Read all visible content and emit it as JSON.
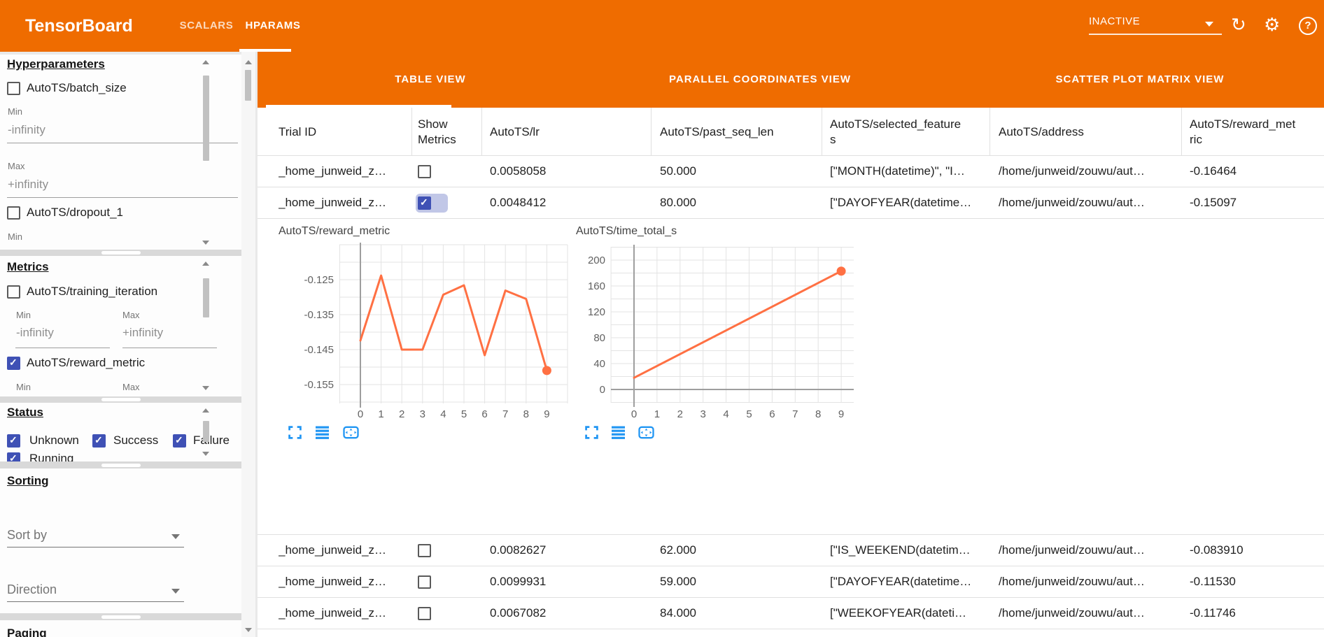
{
  "colors": {
    "accent_orange": "#ef6c00",
    "chart_line": "#ff7043",
    "checkbox_blue": "#3f51b5",
    "icon_blue": "#2196f3"
  },
  "header": {
    "title": "TensorBoard",
    "dashboard_tabs": [
      "SCALARS",
      "HPARAMS"
    ],
    "active_dashboard_tab": "HPARAMS",
    "runs_selector_value": "INACTIVE",
    "icons": {
      "refresh_glyph": "↻",
      "settings_glyph": "⚙",
      "help_glyph": "?"
    }
  },
  "sidebar": {
    "hyperparameters": {
      "heading": "Hyperparameters",
      "param1": "AutoTS/batch_size",
      "param1_checked": false,
      "min_label": "Min",
      "min_value": "-infinity",
      "max_label": "Max",
      "max_value": "+infinity",
      "param2": "AutoTS/dropout_1",
      "param2_checked": false,
      "min_label2": "Min"
    },
    "metrics": {
      "heading": "Metrics",
      "metric1": "AutoTS/training_iteration",
      "metric1_checked": false,
      "min_label": "Min",
      "min_value": "-infinity",
      "max_label": "Max",
      "max_value": "+infinity",
      "metric2": "AutoTS/reward_metric",
      "metric2_checked": true,
      "min_label2": "Min",
      "max_label2": "Max"
    },
    "status": {
      "heading": "Status",
      "options": [
        "Unknown",
        "Success",
        "Failure",
        "Running"
      ],
      "checked": [
        true,
        true,
        true,
        true
      ]
    },
    "sorting": {
      "heading": "Sorting",
      "sort_by": "Sort by",
      "direction": "Direction"
    },
    "paging": {
      "heading": "Paging"
    }
  },
  "main": {
    "view_tabs": [
      "TABLE VIEW",
      "PARALLEL COORDINATES VIEW",
      "SCATTER PLOT MATRIX VIEW"
    ],
    "active_view_tab": "TABLE VIEW"
  },
  "table": {
    "columns": [
      "Trial ID",
      "Show Metrics",
      "AutoTS/lr",
      "AutoTS/past_seq_len",
      "AutoTS/selected_features",
      "AutoTS/address",
      "AutoTS/reward_metric"
    ],
    "rows": [
      {
        "trial_id": "_home_junweid_z…",
        "show_metrics": false,
        "lr": "0.0058058",
        "past_seq_len": "50.000",
        "selected_features": "[\"MONTH(datetime)\", \"I…",
        "address": "/home/junweid/zouwu/aut…",
        "reward_metric": "-0.16464"
      },
      {
        "trial_id": "_home_junweid_z…",
        "show_metrics": true,
        "lr": "0.0048412",
        "past_seq_len": "80.000",
        "selected_features": "[\"DAYOFYEAR(datetime…",
        "address": "/home/junweid/zouwu/aut…",
        "reward_metric": "-0.15097"
      },
      {
        "trial_id": "_home_junweid_z…",
        "show_metrics": false,
        "lr": "0.0082627",
        "past_seq_len": "62.000",
        "selected_features": "[\"IS_WEEKEND(datetim…",
        "address": "/home/junweid/zouwu/aut…",
        "reward_metric": "-0.083910"
      },
      {
        "trial_id": "_home_junweid_z…",
        "show_metrics": false,
        "lr": "0.0099931",
        "past_seq_len": "59.000",
        "selected_features": "[\"DAYOFYEAR(datetime…",
        "address": "/home/junweid/zouwu/aut…",
        "reward_metric": "-0.11530"
      },
      {
        "trial_id": "_home_junweid_z…",
        "show_metrics": false,
        "lr": "0.0067082",
        "past_seq_len": "84.000",
        "selected_features": "[\"WEEKOFYEAR(dateti…",
        "address": "/home/junweid/zouwu/aut…",
        "reward_metric": "-0.11746"
      }
    ]
  },
  "chart_data": [
    {
      "type": "line",
      "title": "AutoTS/reward_metric",
      "x": [
        0,
        1,
        2,
        3,
        4,
        5,
        6,
        7,
        8,
        9
      ],
      "values": [
        -0.1424,
        -0.1238,
        -0.145,
        -0.145,
        -0.1293,
        -0.1266,
        -0.1466,
        -0.1281,
        -0.1305,
        -0.15097
      ],
      "xticks": [
        "0",
        "1",
        "2",
        "3",
        "4",
        "5",
        "6",
        "7",
        "8",
        "9"
      ],
      "yticks": [
        -0.125,
        -0.135,
        -0.145,
        -0.155
      ],
      "ytick_labels": [
        "-0.125",
        "-0.135",
        "-0.145",
        "-0.155"
      ],
      "xlabel": "",
      "ylabel": "",
      "ylim": [
        -0.158,
        -0.118
      ],
      "grid": true,
      "line_color": "#ff7043",
      "end_marker": true
    },
    {
      "type": "line",
      "title": "AutoTS/time_total_s",
      "x": [
        0,
        9
      ],
      "values": [
        18,
        183
      ],
      "xticks": [
        "0",
        "1",
        "2",
        "3",
        "4",
        "5",
        "6",
        "7",
        "8",
        "9"
      ],
      "yticks": [
        200,
        160,
        120,
        80,
        40,
        0
      ],
      "ytick_labels": [
        "200",
        "160",
        "120",
        "80",
        "40",
        "0"
      ],
      "xlabel": "",
      "ylabel": "",
      "ylim": [
        -25,
        220
      ],
      "grid": true,
      "line_color": "#ff7043",
      "end_marker": true
    }
  ]
}
